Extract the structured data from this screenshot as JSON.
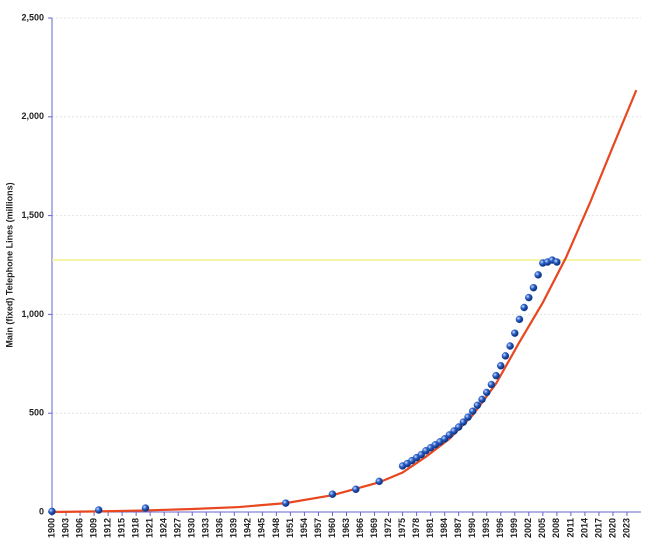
{
  "chart_data": {
    "type": "scatter",
    "y_label": "Main (fixed) Telephone Lines (millions)",
    "xlim": [
      1900,
      2026
    ],
    "ylim": [
      0,
      2500
    ],
    "xticks": [
      1900,
      1903,
      1906,
      1909,
      1912,
      1915,
      1918,
      1921,
      1924,
      1927,
      1930,
      1933,
      1936,
      1939,
      1942,
      1945,
      1948,
      1951,
      1954,
      1957,
      1960,
      1963,
      1966,
      1969,
      1972,
      1975,
      1978,
      1981,
      1984,
      1987,
      1990,
      1993,
      1996,
      1999,
      2002,
      2005,
      2008,
      2011,
      2014,
      2017,
      2020,
      2023
    ],
    "yticks": [
      0,
      {
        "value": 500,
        "label": "500"
      },
      {
        "value": 1000,
        "label": "1,000"
      },
      {
        "value": 1500,
        "label": "1,500"
      },
      {
        "value": 2000,
        "label": "2,000"
      },
      {
        "value": 2500,
        "label": "2,500"
      }
    ],
    "grid": true,
    "hline": {
      "value": 1275,
      "color": "#f2f08a"
    },
    "series": [
      {
        "mode": "line",
        "color": "#e8471f",
        "x": [
          1900,
          1910,
          1920,
          1930,
          1940,
          1950,
          1960,
          1970,
          1975,
          1980,
          1985,
          1990,
          1995,
          2000,
          2005,
          2010,
          2015,
          2020,
          2025
        ],
        "values": [
          0,
          3,
          8,
          15,
          25,
          45,
          85,
          150,
          200,
          280,
          370,
          490,
          650,
          860,
          1060,
          1290,
          1560,
          1850,
          2135
        ]
      },
      {
        "mode": "markers",
        "color": "#2a5fc8",
        "x": [
          1900,
          1910,
          1920,
          1950,
          1960,
          1965,
          1970,
          1975,
          1976,
          1977,
          1978,
          1979,
          1980,
          1981,
          1982,
          1983,
          1984,
          1985,
          1986,
          1987,
          1988,
          1989,
          1990,
          1991,
          1992,
          1993,
          1994,
          1995,
          1996,
          1997,
          1998,
          1999,
          2000,
          2001,
          2002,
          2003,
          2004,
          2005,
          2006,
          2007,
          2008
        ],
        "values": [
          3,
          10,
          20,
          45,
          90,
          115,
          155,
          233,
          245,
          260,
          275,
          290,
          310,
          325,
          340,
          355,
          370,
          390,
          410,
          430,
          455,
          480,
          510,
          540,
          570,
          605,
          645,
          690,
          740,
          790,
          840,
          905,
          975,
          1035,
          1085,
          1135,
          1200,
          1260,
          1265,
          1275,
          1265
        ]
      }
    ]
  }
}
